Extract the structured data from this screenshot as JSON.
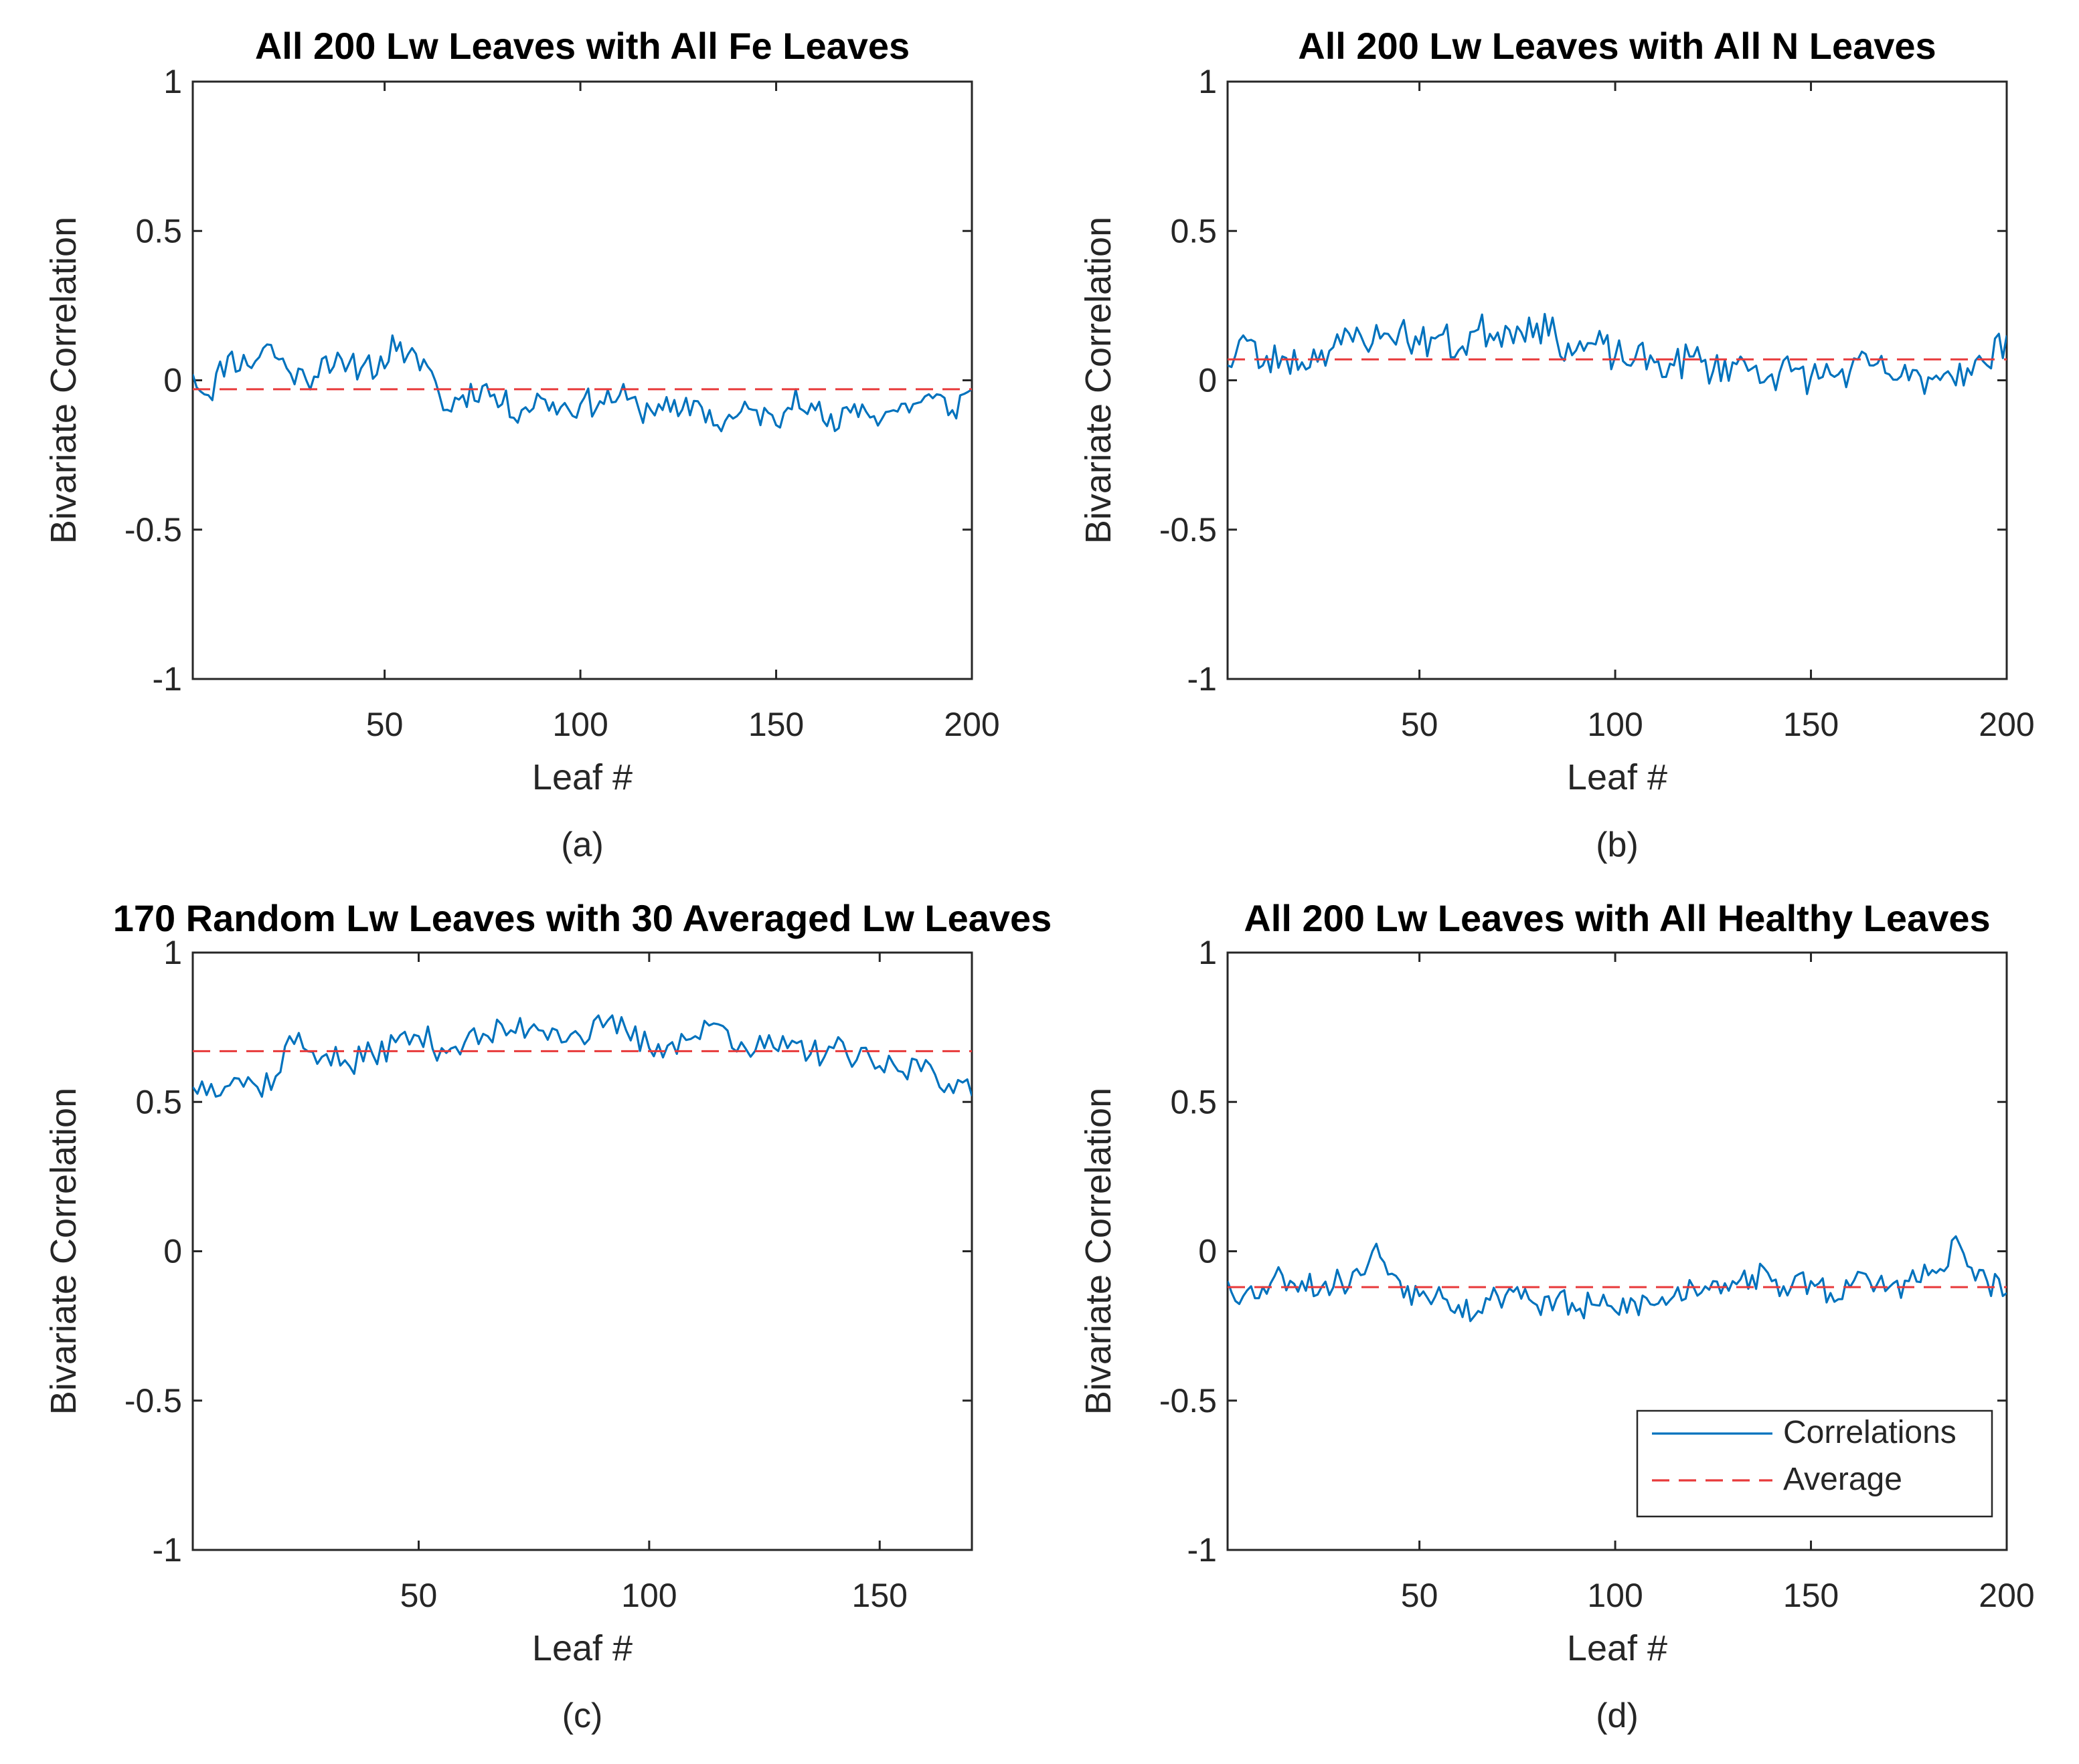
{
  "figure": {
    "colors": {
      "correlations": "#0072BD",
      "average": "#E8393A",
      "axis": "#262626",
      "background": "#FFFFFF"
    }
  },
  "chart_data": [
    {
      "id": "a",
      "type": "line",
      "title": "All 200 Lw Leaves with All Fe Leaves",
      "xlabel": "Leaf #",
      "ylabel": "Bivariate Correlation",
      "caption": "(a)",
      "xlim": [
        1,
        200
      ],
      "ylim": [
        -1,
        1
      ],
      "xticks": [
        50,
        100,
        150,
        200
      ],
      "yticks": [
        -1,
        -0.5,
        0,
        0.5,
        1
      ],
      "ytick_labels": [
        "-1",
        "-0.5",
        "0",
        "0.5",
        "1"
      ],
      "average": -0.03,
      "key_x": [
        1,
        5,
        10,
        15,
        20,
        25,
        30,
        35,
        40,
        45,
        50,
        52,
        55,
        60,
        62,
        65,
        70,
        75,
        80,
        85,
        90,
        95,
        100,
        105,
        110,
        115,
        120,
        125,
        130,
        135,
        140,
        145,
        150,
        155,
        160,
        165,
        170,
        175,
        180,
        185,
        190,
        195,
        200
      ],
      "key_y": [
        0.02,
        -0.05,
        0.08,
        0.05,
        0.12,
        0.04,
        0.0,
        0.08,
        0.03,
        0.06,
        0.04,
        0.15,
        0.06,
        0.07,
        0.03,
        -0.1,
        -0.05,
        -0.02,
        -0.08,
        -0.1,
        -0.06,
        -0.09,
        -0.08,
        -0.07,
        -0.05,
        -0.1,
        -0.08,
        -0.12,
        -0.07,
        -0.15,
        -0.12,
        -0.1,
        -0.15,
        -0.03,
        -0.1,
        -0.17,
        -0.08,
        -0.12,
        -0.1,
        -0.08,
        -0.06,
        -0.1,
        -0.03
      ],
      "noise": 0.05,
      "seed": 11,
      "legend": null
    },
    {
      "id": "b",
      "type": "line",
      "title": "All 200 Lw Leaves with All N Leaves",
      "xlabel": "Leaf #",
      "ylabel": "Bivariate Correlation",
      "caption": "(b)",
      "xlim": [
        1,
        200
      ],
      "ylim": [
        -1,
        1
      ],
      "xticks": [
        50,
        100,
        150,
        200
      ],
      "yticks": [
        -1,
        -0.5,
        0,
        0.5,
        1
      ],
      "ytick_labels": [
        "-1",
        "-0.5",
        "0",
        "0.5",
        "1"
      ],
      "average": 0.07,
      "key_x": [
        1,
        5,
        10,
        15,
        20,
        25,
        30,
        35,
        40,
        45,
        50,
        55,
        60,
        65,
        70,
        75,
        80,
        85,
        90,
        95,
        100,
        105,
        110,
        115,
        120,
        125,
        130,
        135,
        140,
        145,
        150,
        155,
        160,
        165,
        170,
        175,
        180,
        185,
        190,
        195,
        200
      ],
      "key_y": [
        0.05,
        0.15,
        0.05,
        0.08,
        0.06,
        0.1,
        0.12,
        0.15,
        0.14,
        0.17,
        0.12,
        0.15,
        0.1,
        0.17,
        0.16,
        0.18,
        0.19,
        0.14,
        0.1,
        0.12,
        0.08,
        0.07,
        0.06,
        0.05,
        0.08,
        0.03,
        0.06,
        0.04,
        0.02,
        0.03,
        0.01,
        0.02,
        0.03,
        0.05,
        0.02,
        0.0,
        0.01,
        0.03,
        0.04,
        0.05,
        0.15
      ],
      "noise": 0.06,
      "seed": 23,
      "legend": null
    },
    {
      "id": "c",
      "type": "line",
      "title": "170 Random Lw Leaves with 30 Averaged Lw Leaves",
      "xlabel": "Leaf #",
      "ylabel": "Bivariate Correlation",
      "caption": "(c)",
      "xlim": [
        1,
        170
      ],
      "ylim": [
        -1,
        1
      ],
      "xticks": [
        50,
        100,
        150
      ],
      "yticks": [
        -1,
        -0.5,
        0,
        0.5,
        1
      ],
      "ytick_labels": [
        "-1",
        "-0.5",
        "0",
        "0.5",
        "1"
      ],
      "average": 0.67,
      "key_x": [
        1,
        5,
        10,
        15,
        20,
        22,
        25,
        30,
        35,
        40,
        45,
        50,
        55,
        60,
        65,
        70,
        75,
        80,
        85,
        90,
        95,
        100,
        105,
        110,
        115,
        120,
        125,
        130,
        135,
        140,
        145,
        150,
        155,
        160,
        165,
        170
      ],
      "key_y": [
        0.55,
        0.56,
        0.58,
        0.55,
        0.6,
        0.72,
        0.68,
        0.66,
        0.62,
        0.66,
        0.7,
        0.72,
        0.68,
        0.7,
        0.72,
        0.74,
        0.76,
        0.74,
        0.72,
        0.75,
        0.74,
        0.68,
        0.7,
        0.72,
        0.76,
        0.7,
        0.68,
        0.68,
        0.66,
        0.68,
        0.64,
        0.62,
        0.6,
        0.64,
        0.56,
        0.52
      ],
      "noise": 0.05,
      "seed": 37,
      "legend": null
    },
    {
      "id": "d",
      "type": "line",
      "title": "All 200 Lw Leaves with All Healthy Leaves",
      "xlabel": "Leaf #",
      "ylabel": "Bivariate Correlation",
      "caption": "(d)",
      "xlim": [
        1,
        200
      ],
      "ylim": [
        -1,
        1
      ],
      "xticks": [
        50,
        100,
        150,
        200
      ],
      "yticks": [
        -1,
        -0.5,
        0,
        0.5,
        1
      ],
      "ytick_labels": [
        "-1",
        "-0.5",
        "0",
        "0.5",
        "1"
      ],
      "average": -0.12,
      "key_x": [
        1,
        5,
        10,
        15,
        20,
        25,
        30,
        35,
        38,
        40,
        45,
        50,
        55,
        60,
        65,
        70,
        75,
        80,
        85,
        90,
        95,
        100,
        105,
        110,
        115,
        120,
        125,
        130,
        135,
        140,
        145,
        150,
        155,
        160,
        165,
        170,
        175,
        180,
        185,
        187,
        190,
        195,
        200
      ],
      "key_y": [
        -0.1,
        -0.15,
        -0.12,
        -0.08,
        -0.1,
        -0.12,
        -0.1,
        -0.08,
        0.0,
        -0.02,
        -0.1,
        -0.15,
        -0.12,
        -0.18,
        -0.2,
        -0.15,
        -0.12,
        -0.18,
        -0.16,
        -0.2,
        -0.18,
        -0.2,
        -0.17,
        -0.18,
        -0.15,
        -0.12,
        -0.1,
        -0.1,
        -0.08,
        -0.1,
        -0.12,
        -0.1,
        -0.14,
        -0.12,
        -0.1,
        -0.12,
        -0.1,
        -0.08,
        -0.05,
        0.05,
        -0.05,
        -0.1,
        -0.14
      ],
      "noise": 0.05,
      "seed": 53,
      "legend": {
        "location": "bottom-right",
        "entries": [
          "Correlations",
          "Average"
        ]
      }
    }
  ]
}
